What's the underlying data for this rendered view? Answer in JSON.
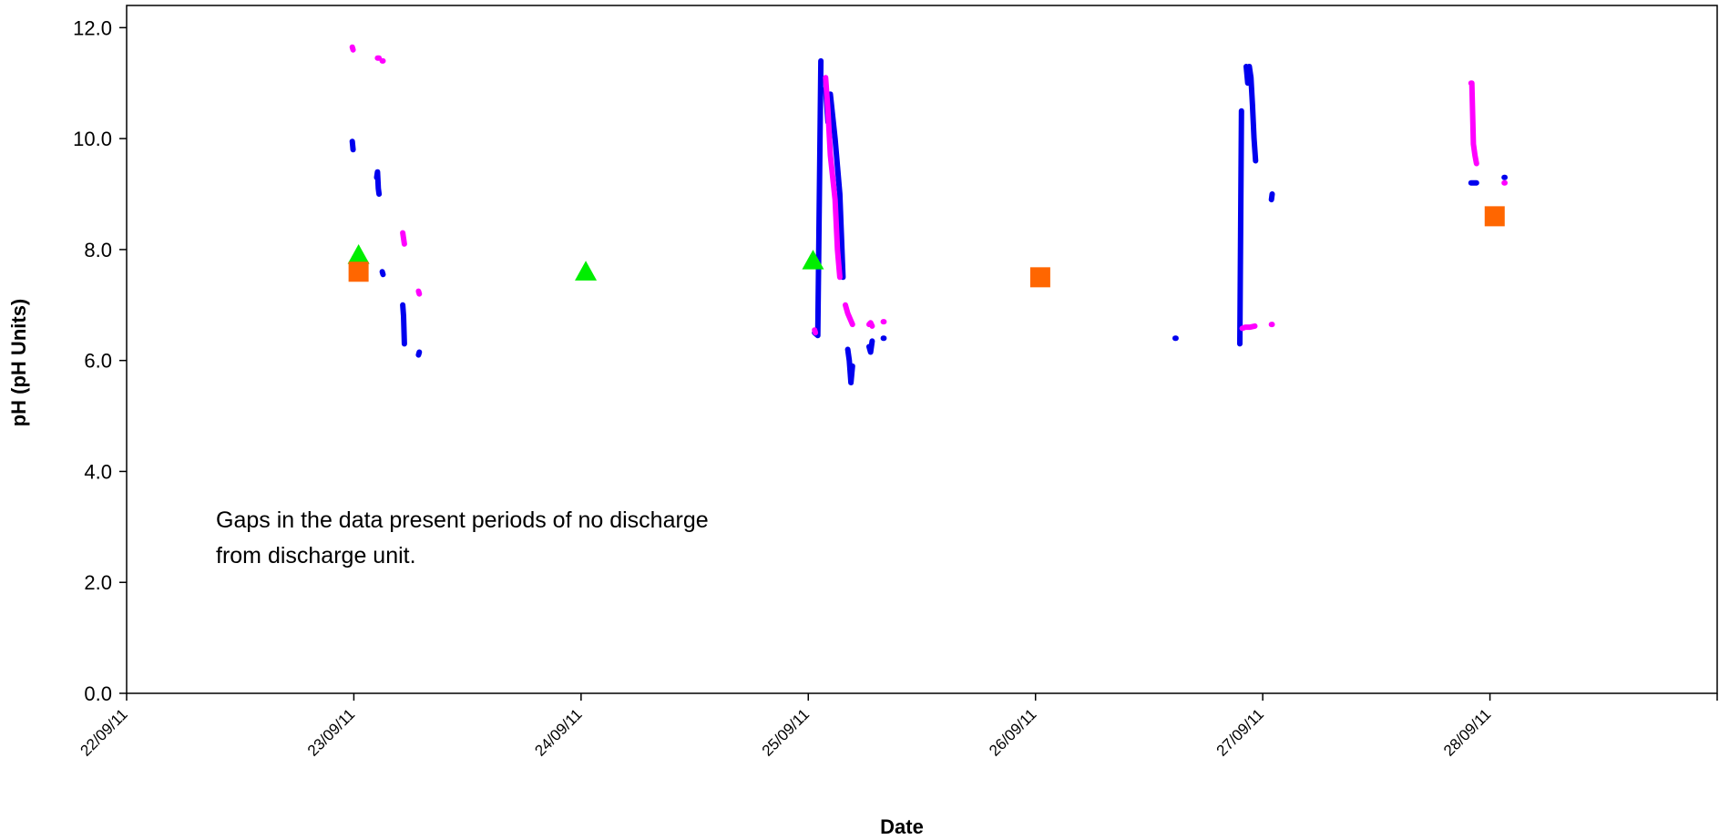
{
  "chart_data": {
    "type": "line",
    "title": "",
    "xlabel": "Date",
    "ylabel": "pH (pH Units)",
    "x_ticks": [
      "22/09/11",
      "23/09/11",
      "24/09/11",
      "25/09/11",
      "26/09/11",
      "27/09/11",
      "28/09/11"
    ],
    "y_ticks": [
      "0.0",
      "2.0",
      "4.0",
      "6.0",
      "8.0",
      "10.0",
      "12.0"
    ],
    "xlim": [
      "2011-09-22",
      "2011-09-29"
    ],
    "ylim": [
      0,
      12.4
    ],
    "grid": false,
    "legend": "none",
    "annotation": {
      "lines": [
        "Gaps in the data present periods of no discharge",
        "from discharge unit."
      ]
    },
    "series": [
      {
        "style": "line",
        "color": "#0000ee",
        "segments": [
          [
            [
              "2011-09-22 23:50",
              9.95
            ],
            [
              "2011-09-22 23:55",
              9.8
            ]
          ],
          [
            [
              "2011-09-23 02:25",
              9.3
            ],
            [
              "2011-09-23 02:30",
              9.4
            ],
            [
              "2011-09-23 02:35",
              9.1
            ],
            [
              "2011-09-23 02:40",
              9.0
            ]
          ],
          [
            [
              "2011-09-23 03:00",
              7.6
            ],
            [
              "2011-09-23 03:05",
              7.55
            ]
          ],
          [
            [
              "2011-09-23 05:10",
              7.0
            ],
            [
              "2011-09-23 05:15",
              6.8
            ],
            [
              "2011-09-23 05:20",
              6.3
            ]
          ],
          [
            [
              "2011-09-23 06:50",
              6.1
            ],
            [
              "2011-09-23 06:55",
              6.15
            ]
          ],
          [
            [
              "2011-09-25 00:40",
              6.5
            ],
            [
              "2011-09-25 01:00",
              6.45
            ],
            [
              "2011-09-25 01:20",
              11.4
            ]
          ],
          [
            [
              "2011-09-25 01:50",
              10.9
            ],
            [
              "2011-09-25 02:05",
              10.3
            ],
            [
              "2011-09-25 02:20",
              10.8
            ],
            [
              "2011-09-25 02:35",
              10.4
            ],
            [
              "2011-09-25 02:50",
              10.0
            ],
            [
              "2011-09-25 03:05",
              9.5
            ],
            [
              "2011-09-25 03:20",
              9.0
            ],
            [
              "2011-09-25 03:40",
              7.5
            ]
          ],
          [
            [
              "2011-09-25 04:10",
              6.2
            ],
            [
              "2011-09-25 04:20",
              6.0
            ],
            [
              "2011-09-25 04:30",
              5.6
            ],
            [
              "2011-09-25 04:40",
              5.9
            ]
          ],
          [
            [
              "2011-09-25 06:25",
              6.25
            ],
            [
              "2011-09-25 06:35",
              6.15
            ],
            [
              "2011-09-25 06:45",
              6.35
            ]
          ],
          [
            [
              "2011-09-25 07:55",
              6.4
            ],
            [
              "2011-09-25 08:00",
              6.4
            ]
          ],
          [
            [
              "2011-09-26 14:45",
              6.4
            ],
            [
              "2011-09-26 14:50",
              6.4
            ]
          ],
          [
            [
              "2011-09-26 21:35",
              6.3
            ],
            [
              "2011-09-26 21:45",
              10.5
            ]
          ],
          [
            [
              "2011-09-26 22:15",
              11.3
            ],
            [
              "2011-09-26 22:25",
              11.0
            ],
            [
              "2011-09-26 22:35",
              11.3
            ],
            [
              "2011-09-26 22:45",
              11.1
            ],
            [
              "2011-09-26 22:55",
              10.6
            ],
            [
              "2011-09-26 23:05",
              10.0
            ],
            [
              "2011-09-26 23:15",
              9.6
            ]
          ],
          [
            [
              "2011-09-27 00:55",
              8.9
            ],
            [
              "2011-09-27 01:00",
              9.0
            ]
          ],
          [
            [
              "2011-09-27 22:00",
              9.2
            ],
            [
              "2011-09-27 22:35",
              9.2
            ]
          ],
          [
            [
              "2011-09-28 01:30",
              9.3
            ],
            [
              "2011-09-28 01:35",
              9.3
            ]
          ]
        ]
      },
      {
        "style": "line",
        "color": "#ff00ff",
        "segments": [
          [
            [
              "2011-09-22 23:50",
              11.65
            ],
            [
              "2011-09-22 23:55",
              11.6
            ]
          ],
          [
            [
              "2011-09-23 02:30",
              11.45
            ],
            [
              "2011-09-23 02:40",
              11.45
            ]
          ],
          [
            [
              "2011-09-23 03:00",
              11.4
            ],
            [
              "2011-09-23 03:05",
              11.4
            ]
          ],
          [
            [
              "2011-09-23 05:10",
              8.3
            ],
            [
              "2011-09-23 05:20",
              8.1
            ]
          ],
          [
            [
              "2011-09-23 06:50",
              7.25
            ],
            [
              "2011-09-23 06:55",
              7.2
            ]
          ],
          [
            [
              "2011-09-25 00:40",
              6.55
            ],
            [
              "2011-09-25 00:45",
              6.5
            ]
          ],
          [
            [
              "2011-09-25 01:50",
              11.1
            ],
            [
              "2011-09-25 02:05",
              10.5
            ],
            [
              "2011-09-25 02:20",
              9.7
            ],
            [
              "2011-09-25 02:35",
              9.3
            ],
            [
              "2011-09-25 02:50",
              8.9
            ],
            [
              "2011-09-25 03:05",
              8.0
            ],
            [
              "2011-09-25 03:20",
              7.5
            ]
          ],
          [
            [
              "2011-09-25 03:55",
              7.0
            ],
            [
              "2011-09-25 04:10",
              6.85
            ],
            [
              "2011-09-25 04:25",
              6.75
            ],
            [
              "2011-09-25 04:40",
              6.65
            ]
          ],
          [
            [
              "2011-09-25 06:25",
              6.65
            ],
            [
              "2011-09-25 06:35",
              6.68
            ],
            [
              "2011-09-25 06:45",
              6.62
            ]
          ],
          [
            [
              "2011-09-25 07:55",
              6.7
            ],
            [
              "2011-09-25 08:00",
              6.7
            ]
          ],
          [
            [
              "2011-09-26 21:50",
              6.58
            ],
            [
              "2011-09-26 22:10",
              6.6
            ],
            [
              "2011-09-26 22:40",
              6.6
            ],
            [
              "2011-09-26 23:10",
              6.62
            ]
          ],
          [
            [
              "2011-09-27 00:55",
              6.65
            ],
            [
              "2011-09-27 01:00",
              6.65
            ]
          ],
          [
            [
              "2011-09-27 22:00",
              11.0
            ],
            [
              "2011-09-27 22:05",
              11.0
            ],
            [
              "2011-09-27 22:15",
              9.9
            ],
            [
              "2011-09-27 22:25",
              9.7
            ],
            [
              "2011-09-27 22:35",
              9.55
            ]
          ],
          [
            [
              "2011-09-28 01:30",
              9.2
            ],
            [
              "2011-09-28 01:35",
              9.2
            ]
          ]
        ]
      },
      {
        "style": "marker",
        "marker": "triangle",
        "color": "#00ee00",
        "points": [
          [
            "2011-09-23 00:30",
            7.9
          ],
          [
            "2011-09-24 00:30",
            7.6
          ],
          [
            "2011-09-25 00:30",
            7.8
          ]
        ]
      },
      {
        "style": "marker",
        "marker": "square",
        "color": "#ff6600",
        "points": [
          [
            "2011-09-23 00:30",
            7.6
          ],
          [
            "2011-09-26 00:30",
            7.5
          ],
          [
            "2011-09-28 00:30",
            8.6
          ]
        ]
      }
    ]
  }
}
